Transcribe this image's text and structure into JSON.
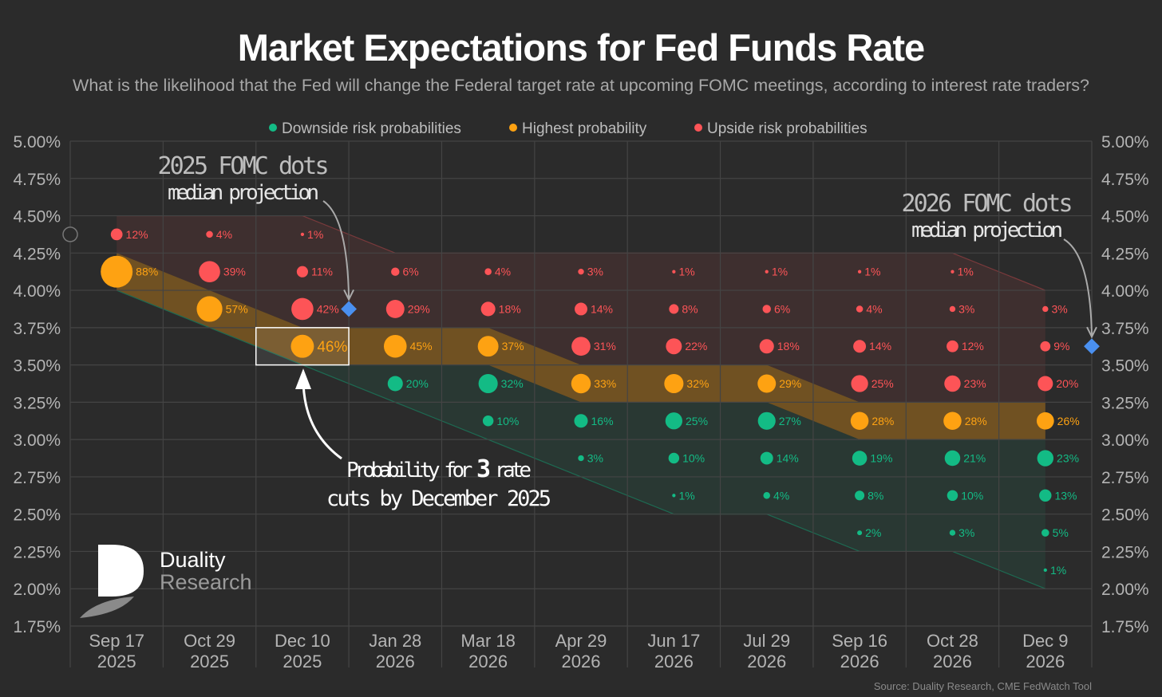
{
  "colors": {
    "bg": "#2b2b2b",
    "down": "#13bb85",
    "high": "#fea212",
    "up": "#fd5457",
    "median": "#4a90f0",
    "grid": "#444444",
    "axis": "#b4b4b4"
  },
  "chart_data": {
    "type": "scatter",
    "title": "Market Expectations for Fed Funds Rate",
    "subtitle": "What is the likelihood that the Fed will change the Federal target rate at upcoming FOMC meetings, according to interest rate traders?",
    "legend": [
      {
        "key": "down",
        "label": "Downside risk probabilities"
      },
      {
        "key": "high",
        "label": "Highest probability"
      },
      {
        "key": "up",
        "label": "Upside risk probabilities"
      }
    ],
    "legend_position": "top-center",
    "ylim": [
      1.75,
      5.0
    ],
    "yticks": [
      "5.00%",
      "4.75%",
      "4.50%",
      "4.25%",
      "4.00%",
      "3.75%",
      "3.50%",
      "3.25%",
      "3.00%",
      "2.75%",
      "2.50%",
      "2.25%",
      "2.00%",
      "1.75%"
    ],
    "current_rate": 4.375,
    "meetings": [
      {
        "month": "Sep 17",
        "year": "2025",
        "points": [
          [
            4.375,
            12,
            "up"
          ],
          [
            4.125,
            88,
            "high"
          ]
        ]
      },
      {
        "month": "Oct 29",
        "year": "2025",
        "points": [
          [
            4.375,
            4,
            "up"
          ],
          [
            4.125,
            39,
            "up"
          ],
          [
            3.875,
            57,
            "high"
          ]
        ]
      },
      {
        "month": "Dec 10",
        "year": "2025",
        "points": [
          [
            4.375,
            1,
            "up"
          ],
          [
            4.125,
            11,
            "up"
          ],
          [
            3.875,
            42,
            "up"
          ],
          [
            3.625,
            46,
            "high"
          ]
        ]
      },
      {
        "month": "Jan 28",
        "year": "2026",
        "points": [
          [
            4.125,
            6,
            "up"
          ],
          [
            3.875,
            29,
            "up"
          ],
          [
            3.625,
            45,
            "high"
          ],
          [
            3.375,
            20,
            "down"
          ]
        ]
      },
      {
        "month": "Mar 18",
        "year": "2026",
        "points": [
          [
            4.125,
            4,
            "up"
          ],
          [
            3.875,
            18,
            "up"
          ],
          [
            3.625,
            37,
            "high"
          ],
          [
            3.375,
            32,
            "down"
          ],
          [
            3.125,
            10,
            "down"
          ]
        ]
      },
      {
        "month": "Apr 29",
        "year": "2026",
        "points": [
          [
            4.125,
            3,
            "up"
          ],
          [
            3.875,
            14,
            "up"
          ],
          [
            3.625,
            31,
            "up"
          ],
          [
            3.375,
            33,
            "high"
          ],
          [
            3.125,
            16,
            "down"
          ],
          [
            2.875,
            3,
            "down"
          ]
        ]
      },
      {
        "month": "Jun 17",
        "year": "2026",
        "points": [
          [
            4.125,
            1,
            "up"
          ],
          [
            3.875,
            8,
            "up"
          ],
          [
            3.625,
            22,
            "up"
          ],
          [
            3.375,
            32,
            "high"
          ],
          [
            3.125,
            25,
            "down"
          ],
          [
            2.875,
            10,
            "down"
          ],
          [
            2.625,
            1,
            "down"
          ]
        ]
      },
      {
        "month": "Jul 29",
        "year": "2026",
        "points": [
          [
            4.125,
            1,
            "up"
          ],
          [
            3.875,
            6,
            "up"
          ],
          [
            3.625,
            18,
            "up"
          ],
          [
            3.375,
            29,
            "high"
          ],
          [
            3.125,
            27,
            "down"
          ],
          [
            2.875,
            14,
            "down"
          ],
          [
            2.625,
            4,
            "down"
          ]
        ]
      },
      {
        "month": "Sep 16",
        "year": "2026",
        "points": [
          [
            4.125,
            1,
            "up"
          ],
          [
            3.875,
            4,
            "up"
          ],
          [
            3.625,
            14,
            "up"
          ],
          [
            3.375,
            25,
            "up"
          ],
          [
            3.125,
            28,
            "high"
          ],
          [
            2.875,
            19,
            "down"
          ],
          [
            2.625,
            8,
            "down"
          ],
          [
            2.375,
            2,
            "down"
          ]
        ]
      },
      {
        "month": "Oct 28",
        "year": "2026",
        "points": [
          [
            4.125,
            1,
            "up"
          ],
          [
            3.875,
            3,
            "up"
          ],
          [
            3.625,
            12,
            "up"
          ],
          [
            3.375,
            23,
            "up"
          ],
          [
            3.125,
            28,
            "high"
          ],
          [
            2.875,
            21,
            "down"
          ],
          [
            2.625,
            10,
            "down"
          ],
          [
            2.375,
            3,
            "down"
          ]
        ]
      },
      {
        "month": "Dec 9",
        "year": "2026",
        "points": [
          [
            3.875,
            3,
            "up"
          ],
          [
            3.625,
            9,
            "up"
          ],
          [
            3.375,
            20,
            "up"
          ],
          [
            3.125,
            26,
            "high"
          ],
          [
            2.875,
            23,
            "down"
          ],
          [
            2.625,
            13,
            "down"
          ],
          [
            2.375,
            5,
            "down"
          ],
          [
            2.125,
            1,
            "down"
          ]
        ]
      }
    ],
    "bands": {
      "up_top": [
        4.5,
        4.5,
        4.5,
        4.25,
        4.25,
        4.25,
        4.25,
        4.25,
        4.25,
        4.25,
        4.0
      ],
      "high_top": [
        4.25,
        4.0,
        3.75,
        3.75,
        3.75,
        3.5,
        3.5,
        3.5,
        3.25,
        3.25,
        3.25
      ],
      "high_bottom": [
        4.0,
        3.75,
        3.5,
        3.5,
        3.5,
        3.25,
        3.25,
        3.25,
        3.0,
        3.0,
        3.0
      ],
      "down_bottom": [
        4.0,
        3.75,
        3.5,
        3.25,
        3.0,
        2.75,
        2.5,
        2.5,
        2.25,
        2.25,
        2.0
      ]
    },
    "medians": [
      {
        "label_line1": "2025 FOMC dots",
        "label_line2": "median projection",
        "after_meeting": 2,
        "rate": 3.875
      },
      {
        "label_line1": "2026 FOMC dots",
        "label_line2": "median projection",
        "after_meeting": 10,
        "rate": 3.625
      }
    ],
    "highlight": {
      "meeting": 2,
      "line1a": "Probability for ",
      "line1b": "3",
      "line1c": " rate",
      "line2": "cuts by December 2025"
    }
  },
  "brand": {
    "line1": "Duality",
    "line2": "Research"
  },
  "source": "Source: Duality Research, CME FedWatch Tool"
}
